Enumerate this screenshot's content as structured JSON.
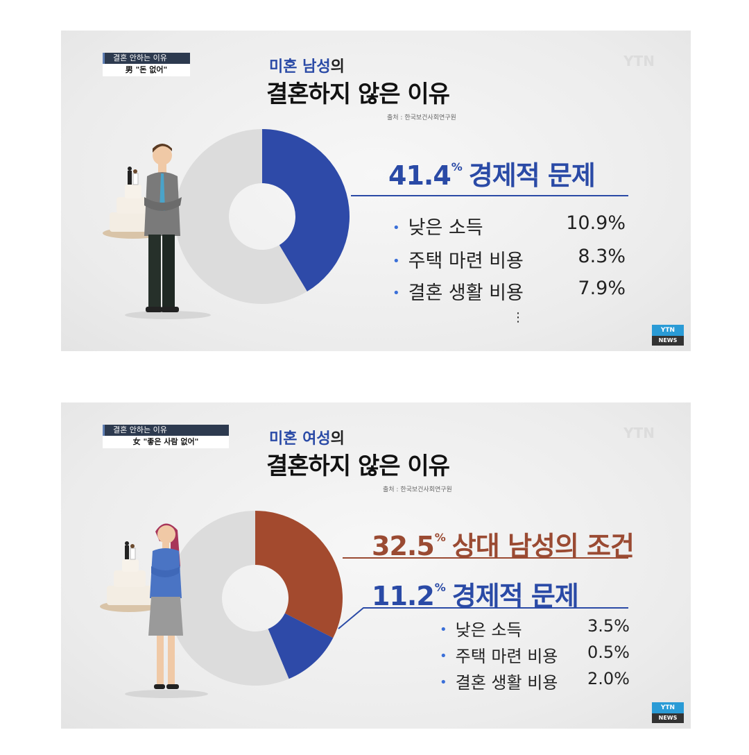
{
  "chart_data": [
    {
      "type": "pie",
      "tag_line1": "결혼 안하는 이유",
      "tag_line2": "男 \"돈 없어\"",
      "title_prefix": "미혼 남성",
      "title_suffix": "의",
      "title_main": "결혼하지 않은 이유",
      "source": "출처 : 한국보건사회연구원",
      "slices": [
        {
          "label": "경제적 문제",
          "value": 41.4,
          "color": "#2e4aa8"
        },
        {
          "label": "",
          "value": 58.6,
          "color": "#dcdcdc"
        }
      ],
      "headline": [
        {
          "value": "41.4",
          "unit": "%",
          "label": "경제적 문제",
          "color": "#2a4aa6"
        }
      ],
      "sub_items": [
        {
          "label": "낮은 소득",
          "value": "10.9%"
        },
        {
          "label": "주택 마련 비용",
          "value": "8.3%"
        },
        {
          "label": "결혼 생활 비용",
          "value": "7.9%"
        }
      ],
      "ellipsis": "⋮"
    },
    {
      "type": "pie",
      "tag_line1": "결혼 안하는 이유",
      "tag_line2": "女 \"좋은 사람 없어\"",
      "title_prefix": "미혼 여성",
      "title_suffix": "의",
      "title_main": "결혼하지 않은 이유",
      "source": "출처 : 한국보건사회연구원",
      "slices": [
        {
          "label": "상대 남성의 조건",
          "value": 32.5,
          "color": "#a34a2e"
        },
        {
          "label": "경제적 문제",
          "value": 11.2,
          "color": "#2e4aa8"
        },
        {
          "label": "",
          "value": 56.3,
          "color": "#dcdcdc"
        }
      ],
      "headline": [
        {
          "value": "32.5",
          "unit": "%",
          "label": "상대 남성의 조건",
          "color": "#9a4a32"
        },
        {
          "value": "11.2",
          "unit": "%",
          "label": "경제적 문제",
          "color": "#2a4aa6"
        }
      ],
      "sub_items": [
        {
          "label": "낮은 소득",
          "value": "3.5%"
        },
        {
          "label": "주택 마련 비용",
          "value": "0.5%"
        },
        {
          "label": "결혼 생활 비용",
          "value": "2.0%"
        }
      ]
    }
  ],
  "branding": {
    "watermark": "YTN",
    "badge_top": "YTN",
    "badge_bottom": "NEWS"
  }
}
